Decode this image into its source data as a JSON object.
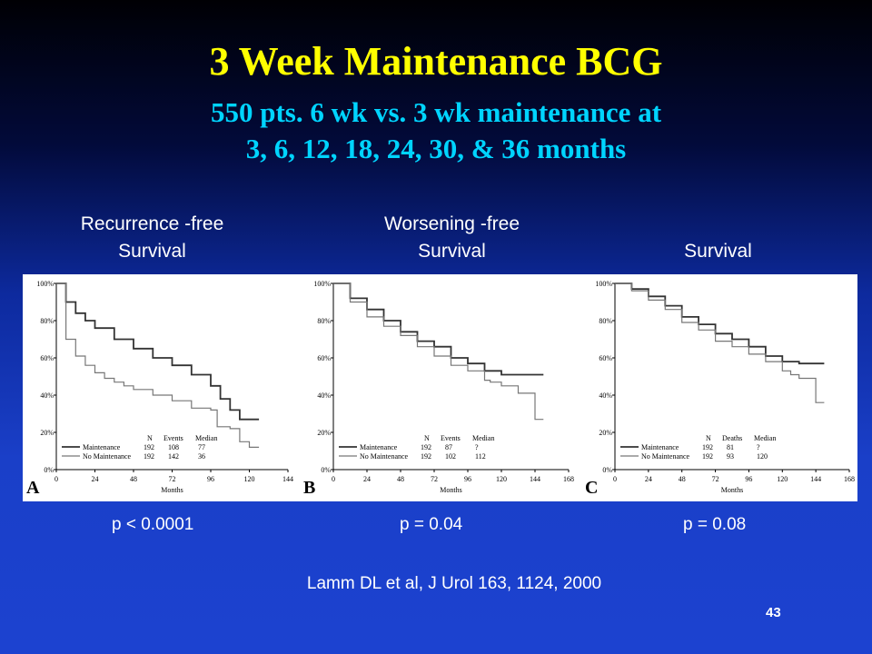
{
  "title": "3 Week Maintenance BCG",
  "subtitle_line1": "550 pts. 6 wk vs. 3 wk maintenance at",
  "subtitle_line2": "3, 6, 12, 18, 24, 30, & 36 months",
  "panel_labels": [
    {
      "line1": "Recurrence -free",
      "line2": "Survival"
    },
    {
      "line1": "Worsening -free",
      "line2": "Survival"
    },
    {
      "line1": "",
      "line2": "Survival"
    }
  ],
  "p_values": [
    "p < 0.0001",
    "p = 0.04",
    "p = 0.08"
  ],
  "citation": "Lamm DL et al, J Urol 163, 1124, 2000",
  "slide_number": "43",
  "colors": {
    "title": "#ffff00",
    "subtitle": "#00d4ff",
    "text": "#ffffff"
  },
  "chart_data": [
    {
      "type": "line",
      "panel_letter": "A",
      "xlabel": "Months",
      "x_ticks": [
        0,
        24,
        48,
        72,
        96,
        120,
        144
      ],
      "xlim": [
        0,
        144
      ],
      "y_ticks": [
        "0%",
        "20%",
        "40%",
        "60%",
        "80%",
        "100%"
      ],
      "ylim": [
        0,
        100
      ],
      "table_header": [
        "N",
        "Events",
        "Median"
      ],
      "series": [
        {
          "name": "Maintenance",
          "N": "192",
          "events": "108",
          "median": "77",
          "x": [
            0,
            6,
            12,
            18,
            24,
            36,
            48,
            60,
            72,
            84,
            96,
            102,
            108,
            114,
            120,
            126
          ],
          "y": [
            100,
            90,
            84,
            80,
            76,
            70,
            65,
            60,
            56,
            51,
            45,
            38,
            32,
            27,
            27,
            27
          ]
        },
        {
          "name": "No Maintenance",
          "N": "192",
          "events": "142",
          "median": "36",
          "x": [
            0,
            6,
            12,
            18,
            24,
            30,
            36,
            42,
            48,
            60,
            72,
            84,
            96,
            100,
            108,
            114,
            120,
            126
          ],
          "y": [
            100,
            70,
            61,
            56,
            52,
            49,
            47,
            45,
            43,
            40,
            37,
            33,
            32,
            23,
            22,
            15,
            12,
            12
          ]
        }
      ]
    },
    {
      "type": "line",
      "panel_letter": "B",
      "xlabel": "Months",
      "x_ticks": [
        0,
        24,
        48,
        72,
        96,
        120,
        144,
        168
      ],
      "xlim": [
        0,
        168
      ],
      "y_ticks": [
        "0%",
        "20%",
        "40%",
        "60%",
        "80%",
        "100%"
      ],
      "ylim": [
        0,
        100
      ],
      "table_header": [
        "N",
        "Events",
        "Median"
      ],
      "series": [
        {
          "name": "Maintenance",
          "N": "192",
          "events": "87",
          "median": "?",
          "x": [
            0,
            12,
            24,
            36,
            48,
            60,
            72,
            84,
            96,
            108,
            120,
            132,
            144,
            150
          ],
          "y": [
            100,
            92,
            86,
            80,
            74,
            69,
            66,
            60,
            57,
            53,
            51,
            51,
            51,
            51
          ]
        },
        {
          "name": "No Maintenance",
          "N": "192",
          "events": "102",
          "median": "112",
          "x": [
            0,
            12,
            24,
            36,
            48,
            60,
            72,
            84,
            96,
            108,
            112,
            120,
            132,
            138,
            144,
            150
          ],
          "y": [
            100,
            90,
            82,
            77,
            72,
            66,
            61,
            56,
            53,
            48,
            47,
            45,
            41,
            41,
            27,
            27
          ]
        }
      ]
    },
    {
      "type": "line",
      "panel_letter": "C",
      "xlabel": "Months",
      "x_ticks": [
        0,
        24,
        48,
        72,
        96,
        120,
        144,
        168
      ],
      "xlim": [
        0,
        168
      ],
      "y_ticks": [
        "0%",
        "20%",
        "40%",
        "60%",
        "80%",
        "100%"
      ],
      "ylim": [
        0,
        100
      ],
      "table_header": [
        "N",
        "Deaths",
        "Median"
      ],
      "series": [
        {
          "name": "Maintenance",
          "N": "192",
          "events": "81",
          "median": "?",
          "x": [
            0,
            12,
            24,
            36,
            48,
            60,
            72,
            84,
            96,
            108,
            120,
            132,
            144,
            150
          ],
          "y": [
            100,
            97,
            93,
            88,
            82,
            78,
            73,
            70,
            66,
            61,
            58,
            57,
            57,
            57
          ]
        },
        {
          "name": "No Maintenance",
          "N": "192",
          "events": "93",
          "median": "120",
          "x": [
            0,
            12,
            24,
            36,
            48,
            60,
            72,
            84,
            96,
            108,
            120,
            126,
            132,
            138,
            144,
            150
          ],
          "y": [
            100,
            96,
            91,
            86,
            79,
            75,
            69,
            66,
            62,
            58,
            53,
            51,
            49,
            49,
            36,
            36
          ]
        }
      ]
    }
  ]
}
